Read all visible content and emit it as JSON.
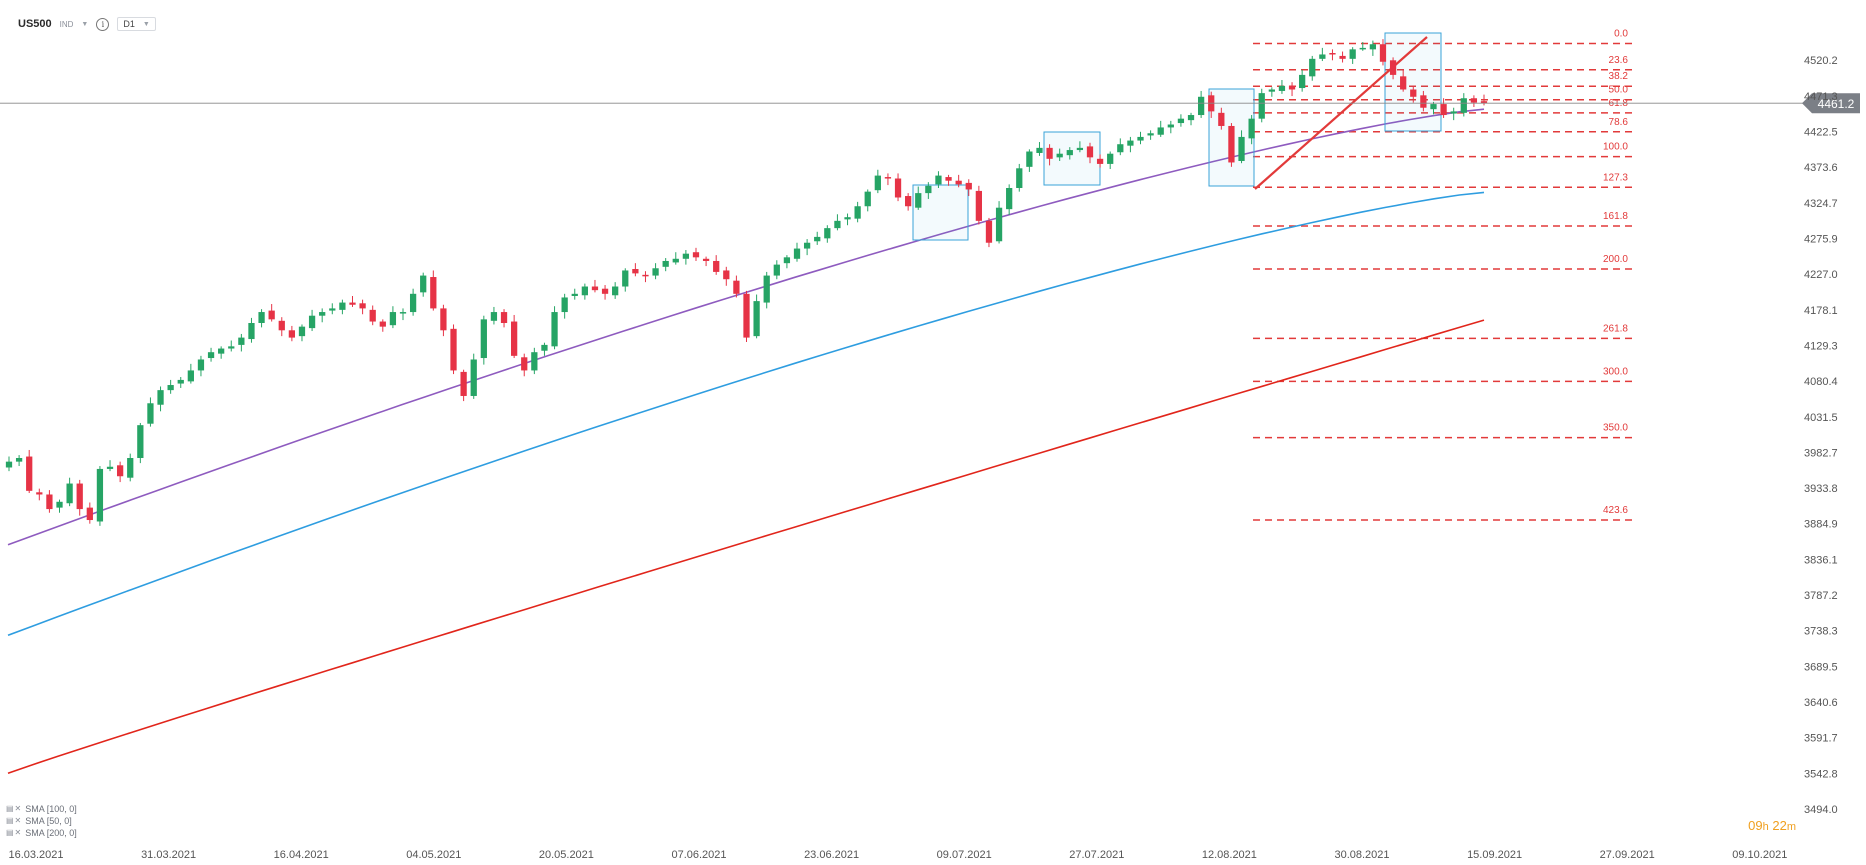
{
  "toolbar": {
    "symbol": "US500",
    "market": "IND",
    "timeframe": "D1",
    "icons": {
      "info": "info-icon",
      "dropdown": "chevron-down-icon"
    }
  },
  "timer": {
    "hours": "09",
    "h": "h",
    "minutes": "22",
    "m": "m"
  },
  "legend": [
    {
      "label": "SMA [100, 0]",
      "color": "#2e9de0"
    },
    {
      "label": "SMA [50, 0]",
      "color": "#8e5bbf"
    },
    {
      "label": "SMA [200, 0]",
      "color": "#e1251b"
    }
  ],
  "chart_data": {
    "type": "candlestick",
    "symbol": "US500",
    "timeframe": "D1",
    "ylim": [
      3494.0,
      4530
    ],
    "y_ticks": [
      "4520.2",
      "4471.3",
      "4422.5",
      "4373.6",
      "4324.7",
      "4275.9",
      "4227.0",
      "4178.1",
      "4129.3",
      "4080.4",
      "4031.5",
      "3982.7",
      "3933.8",
      "3884.9",
      "3836.1",
      "3787.2",
      "3738.3",
      "3689.5",
      "3640.6",
      "3591.7",
      "3542.8",
      "3494.0"
    ],
    "x_ticks": [
      "16.03.2021",
      "31.03.2021",
      "16.04.2021",
      "04.05.2021",
      "20.05.2021",
      "07.06.2021",
      "23.06.2021",
      "09.07.2021",
      "27.07.2021",
      "12.08.2021",
      "30.08.2021",
      "15.09.2021",
      "27.09.2021",
      "09.10.2021"
    ],
    "last_price": "4461.2",
    "closes": [
      3970,
      3975,
      3930,
      3925,
      3905,
      3915,
      3940,
      3905,
      3890,
      3960,
      3963,
      3950,
      3975,
      4020,
      4050,
      4068,
      4075,
      4082,
      4095,
      4110,
      4120,
      4125,
      4128,
      4140,
      4160,
      4175,
      4165,
      4150,
      4140,
      4155,
      4170,
      4175,
      4180,
      4188,
      4185,
      4180,
      4162,
      4155,
      4175,
      4175,
      4200,
      4225,
      4180,
      4150,
      4095,
      4060,
      4110,
      4165,
      4175,
      4160,
      4115,
      4095,
      4120,
      4130,
      4175,
      4195,
      4200,
      4210,
      4205,
      4200,
      4210,
      4232,
      4228,
      4225,
      4235,
      4245,
      4248,
      4255,
      4250,
      4245,
      4230,
      4220,
      4200,
      4140,
      4190,
      4225,
      4240,
      4250,
      4262,
      4270,
      4278,
      4290,
      4300,
      4305,
      4320,
      4340,
      4362,
      4358,
      4332,
      4320,
      4338,
      4348,
      4362,
      4355,
      4350,
      4343,
      4300,
      4270,
      4318,
      4345,
      4372,
      4395,
      4400,
      4385,
      4392,
      4397,
      4400,
      4387,
      4378,
      4392,
      4405,
      4410,
      4415,
      4420,
      4428,
      4432,
      4440,
      4445,
      4470,
      4450,
      4430,
      4380,
      4415,
      4440,
      4475,
      4480,
      4485,
      4480,
      4500,
      4522,
      4528,
      4528,
      4522,
      4535,
      4537,
      4542,
      4518,
      4500,
      4480,
      4470,
      4455,
      4460,
      4445,
      4450,
      4468,
      4462,
      4461.2
    ],
    "fibonacci": {
      "levels": [
        "0.0",
        "23.6",
        "38.2",
        "50.0",
        "61.8",
        "78.6",
        "100.0",
        "127.3",
        "161.8",
        "200.0",
        "261.8",
        "300.0",
        "350.0",
        "423.6"
      ],
      "prices": [
        4543,
        4507,
        4484.5,
        4466,
        4448,
        4422,
        4388,
        4346,
        4293,
        4234,
        4139,
        4080,
        4003,
        3890
      ],
      "color": "#e23a3a"
    },
    "sma": {
      "sma50": {
        "label": "SMA [50, 0]",
        "color": "#8e5bbf",
        "start": 3856,
        "end": 4453
      },
      "sma100": {
        "label": "SMA [100, 0]",
        "color": "#2e9de0",
        "start": 3732,
        "end": 4339
      },
      "sma200": {
        "label": "SMA [200, 0]",
        "color": "#e1251b",
        "start": 3543,
        "end": 4164
      }
    },
    "colors": {
      "up": "#26a465",
      "down": "#e63346",
      "box": "#3aa3d8",
      "trend": "#e23a3a"
    }
  }
}
